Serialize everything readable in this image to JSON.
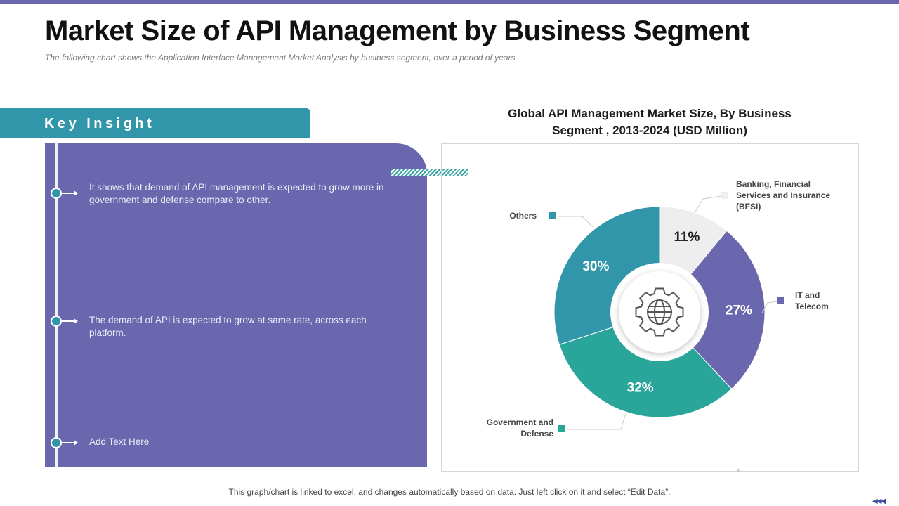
{
  "page": {
    "title": "Market Size of API Management by Business Segment",
    "subtitle": "The following  chart shows the Application Interface Management  Market Analysis by business segment, over  a period of years",
    "footnote": "This graph/chart is linked to excel, and changes automatically based on data. Just left click on it and select “Edit Data”.",
    "nav_icon": "previous-slide-arrows-icon"
  },
  "insight": {
    "header": "Key Insight",
    "items": [
      "It shows that demand of API management is expected to grow more in government and defense compare to other.",
      "The demand of API is expected to grow at same rate, across each platform.",
      "Add Text Here"
    ]
  },
  "colors": {
    "accent_purple": "#6a67ae",
    "accent_teal": "#3296ab",
    "accent_green": "#2aa59a",
    "light_gray": "#eeeeee"
  },
  "chart_data": {
    "type": "pie",
    "variant": "donut",
    "title": "Global API Management Market Size, By Business Segment , 2013-2024 (USD Million)",
    "center_icon": "gear-globe-icon",
    "series": [
      {
        "name": "Banking, Financial Services and Insurance (BFSI)",
        "value": 11,
        "label": "11%",
        "color": "#eeeeee"
      },
      {
        "name": "IT and Telecom",
        "value": 27,
        "label": "27%",
        "color": "#6a67ae"
      },
      {
        "name": "Government and Defense",
        "value": 32,
        "label": "32%",
        "color": "#2aa59a"
      },
      {
        "name": "Others",
        "value": 30,
        "label": "30%",
        "color": "#3296ab"
      }
    ]
  }
}
